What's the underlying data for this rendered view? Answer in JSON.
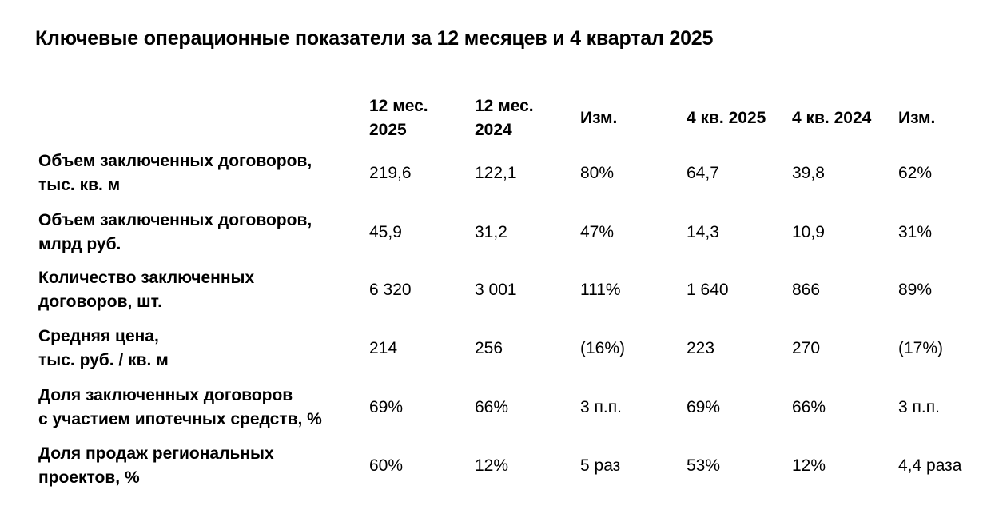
{
  "title": "Ключевые операционные показатели за 12 месяцев и 4 квартал 2025",
  "headers": [
    "12 мес.\n2025",
    "12 мес.\n2024",
    "Изм.",
    "4 кв. 2025",
    "4 кв. 2024",
    "Изм."
  ],
  "rows": [
    {
      "label": "Объем заключенных договоров,\nтыс. кв. м",
      "values": [
        "219,6",
        "122,1",
        "80%",
        "64,7",
        "39,8",
        "62%"
      ]
    },
    {
      "label": "Объем заключенных договоров,\nмлрд руб.",
      "values": [
        "45,9",
        "31,2",
        "47%",
        "14,3",
        "10,9",
        "31%"
      ]
    },
    {
      "label": "Количество заключенных\nдоговоров, шт.",
      "values": [
        "6 320",
        "3 001",
        "111%",
        "1 640",
        "866",
        "89%"
      ]
    },
    {
      "label": "Средняя цена,\nтыс. руб. / кв. м",
      "values": [
        "214",
        "256",
        "(16%)",
        "223",
        "270",
        "(17%)"
      ]
    },
    {
      "label": "Доля заключенных договоров\nс участием ипотечных средств, %",
      "values": [
        "69%",
        "66%",
        "3 п.п.",
        "69%",
        "66%",
        "3 п.п."
      ]
    },
    {
      "label": "Доля продаж региональных\nпроектов, %",
      "values": [
        "60%",
        "12%",
        "5 раз",
        "53%",
        "12%",
        "4,4 раза"
      ]
    }
  ]
}
